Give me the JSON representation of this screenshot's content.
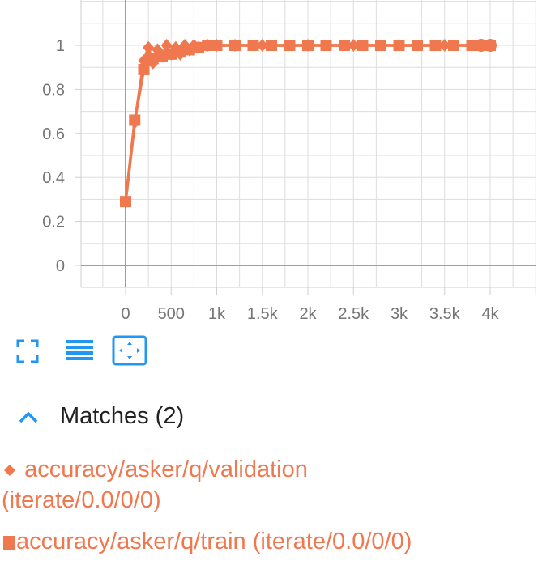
{
  "chart_data": {
    "type": "line",
    "color": "#f0784f",
    "x_ticks": [
      "0",
      "500",
      "1k",
      "1.5k",
      "2k",
      "2.5k",
      "3k",
      "3.5k",
      "4k"
    ],
    "x_tick_values": [
      0,
      500,
      1000,
      1500,
      2000,
      2500,
      3000,
      3500,
      4000
    ],
    "y_ticks": [
      "0",
      "0.2",
      "0.4",
      "0.6",
      "0.8",
      "1"
    ],
    "y_tick_values": [
      0,
      0.2,
      0.4,
      0.6,
      0.8,
      1
    ],
    "xlim": [
      -500,
      4500
    ],
    "ylim": [
      -0.1,
      1.2
    ],
    "grid": true,
    "series": [
      {
        "name": "accuracy/asker/q/validation (iterate/0.0/0/0)",
        "marker": "diamond",
        "x": [
          0,
          100,
          200,
          250,
          300,
          350,
          400,
          450,
          500,
          550,
          600,
          650,
          700,
          750,
          800,
          900,
          1000,
          1200,
          1500,
          2000,
          2500,
          3000,
          3500,
          4000
        ],
        "y": [
          0.29,
          0.65,
          0.93,
          0.99,
          0.92,
          0.98,
          0.95,
          1.0,
          0.96,
          0.99,
          0.96,
          1.0,
          0.98,
          1.0,
          0.99,
          1.0,
          1.0,
          1.0,
          1.0,
          1.0,
          1.0,
          1.0,
          1.0,
          1.0
        ]
      },
      {
        "name": "accuracy/asker/q/train (iterate/0.0/0/0)",
        "marker": "square",
        "x": [
          0,
          100,
          200,
          300,
          400,
          500,
          600,
          700,
          800,
          900,
          1000,
          1200,
          1400,
          1600,
          1800,
          2000,
          2200,
          2400,
          2600,
          2800,
          3000,
          3200,
          3400,
          3600,
          3800,
          3900,
          4000
        ],
        "y": [
          0.29,
          0.66,
          0.89,
          0.94,
          0.95,
          0.96,
          0.97,
          0.98,
          0.99,
          1.0,
          1.0,
          1.0,
          1.0,
          1.0,
          1.0,
          1.0,
          1.0,
          1.0,
          1.0,
          1.0,
          1.0,
          1.0,
          1.0,
          1.0,
          1.0,
          1.0,
          1.0
        ]
      }
    ]
  },
  "toolbar": {
    "fullscreen_icon": "fullscreen-icon",
    "data_table_icon": "list-icon",
    "fit_domain_icon": "fit-domain-icon"
  },
  "matches": {
    "title": "Matches (2)",
    "items": [
      {
        "marker": "diamond",
        "label": "accuracy/asker/q/validation (iterate/0.0/0/0)"
      },
      {
        "marker": "square",
        "label": "accuracy/asker/q/train (iterate/0.0/0/0)"
      }
    ]
  },
  "colors": {
    "series": "#f0784f",
    "accent": "#2196f3",
    "grid": "#dddddd",
    "axis": "#9e9e9e"
  }
}
